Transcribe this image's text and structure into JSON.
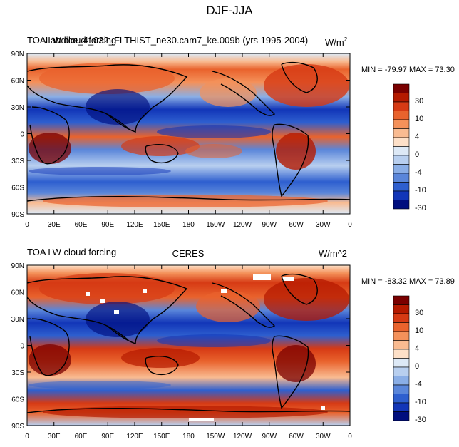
{
  "figure": {
    "title": "DJF-JJA"
  },
  "panels": [
    {
      "left_title": "TOA LW cloud forcing",
      "center_title": "Landice_4_032_FLTHIST_ne30.cam7_ke.009b (yrs 1995-2004)",
      "right_title": "W/m",
      "right_title_sup": "2",
      "stats": "MIN = -79.97 MAX =  73.30"
    },
    {
      "left_title": "TOA LW cloud forcing",
      "center_title": "CERES",
      "right_title": "W/m^2",
      "right_title_sup": "",
      "stats": "MIN = -83.32 MAX =  73.89"
    }
  ],
  "axes": {
    "lat_ticks": [
      "90N",
      "60N",
      "30N",
      "0",
      "30S",
      "60S",
      "90S"
    ],
    "lon_ticks": [
      "0",
      "30E",
      "60E",
      "90E",
      "120E",
      "150E",
      "180",
      "150W",
      "120W",
      "90W",
      "60W",
      "30W",
      "0"
    ]
  },
  "colorbar": {
    "labels": [
      "30",
      "10",
      "4",
      "0",
      "-4",
      "-10",
      "-30"
    ],
    "colors": [
      "#7a0000",
      "#b51a00",
      "#d63a14",
      "#e9632d",
      "#f4915a",
      "#f9bb91",
      "#fde0c8",
      "#dde9f6",
      "#b8cfef",
      "#8aaee6",
      "#5a86da",
      "#2e5fcf",
      "#1236b8",
      "#000e7e"
    ]
  }
}
